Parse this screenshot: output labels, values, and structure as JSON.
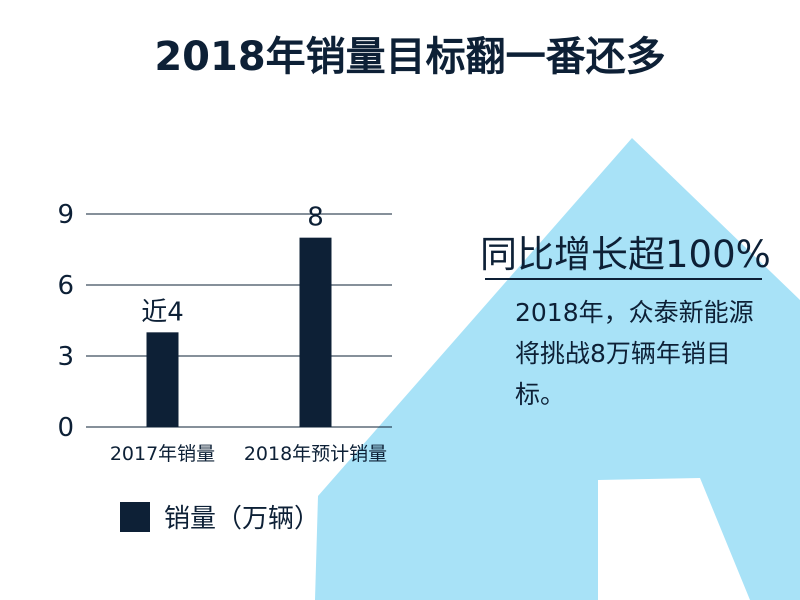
{
  "title": "2018年销量目标翻一番还多",
  "colors": {
    "bar": "#0d2036",
    "arrow": "#a8e2f7",
    "text": "#0d2036",
    "grid": "#0d2036"
  },
  "chart_data": {
    "type": "bar",
    "categories": [
      "2017年销量",
      "2018年预计销量"
    ],
    "series": [
      {
        "name": "销量（万辆）",
        "values": [
          4,
          8
        ]
      }
    ],
    "data_labels": [
      "近4",
      "8"
    ],
    "yticks": [
      "0",
      "3",
      "6",
      "9"
    ],
    "ylim": [
      0,
      9
    ],
    "grid": true,
    "legend_position": "bottom-left"
  },
  "legend": {
    "label": "销量（万辆）"
  },
  "headline": "同比增长超100%",
  "description": "2018年，众泰新能源将挑战8万辆年销目标。"
}
